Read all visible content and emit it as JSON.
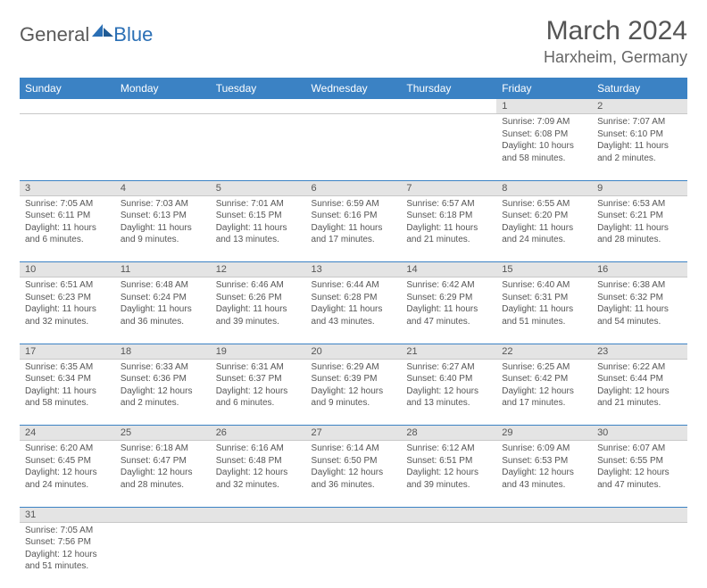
{
  "brand": {
    "part1": "General",
    "part2": "Blue"
  },
  "title": "March 2024",
  "location": "Harxheim, Germany",
  "colors": {
    "header_bg": "#3b82c4",
    "header_text": "#ffffff",
    "daynum_bg": "#e4e4e4",
    "text": "#555555",
    "rule": "#3b82c4"
  },
  "day_headers": [
    "Sunday",
    "Monday",
    "Tuesday",
    "Wednesday",
    "Thursday",
    "Friday",
    "Saturday"
  ],
  "weeks": [
    [
      null,
      null,
      null,
      null,
      null,
      {
        "n": "1",
        "sr": "Sunrise: 7:09 AM",
        "ss": "Sunset: 6:08 PM",
        "dl1": "Daylight: 10 hours",
        "dl2": "and 58 minutes."
      },
      {
        "n": "2",
        "sr": "Sunrise: 7:07 AM",
        "ss": "Sunset: 6:10 PM",
        "dl1": "Daylight: 11 hours",
        "dl2": "and 2 minutes."
      }
    ],
    [
      {
        "n": "3",
        "sr": "Sunrise: 7:05 AM",
        "ss": "Sunset: 6:11 PM",
        "dl1": "Daylight: 11 hours",
        "dl2": "and 6 minutes."
      },
      {
        "n": "4",
        "sr": "Sunrise: 7:03 AM",
        "ss": "Sunset: 6:13 PM",
        "dl1": "Daylight: 11 hours",
        "dl2": "and 9 minutes."
      },
      {
        "n": "5",
        "sr": "Sunrise: 7:01 AM",
        "ss": "Sunset: 6:15 PM",
        "dl1": "Daylight: 11 hours",
        "dl2": "and 13 minutes."
      },
      {
        "n": "6",
        "sr": "Sunrise: 6:59 AM",
        "ss": "Sunset: 6:16 PM",
        "dl1": "Daylight: 11 hours",
        "dl2": "and 17 minutes."
      },
      {
        "n": "7",
        "sr": "Sunrise: 6:57 AM",
        "ss": "Sunset: 6:18 PM",
        "dl1": "Daylight: 11 hours",
        "dl2": "and 21 minutes."
      },
      {
        "n": "8",
        "sr": "Sunrise: 6:55 AM",
        "ss": "Sunset: 6:20 PM",
        "dl1": "Daylight: 11 hours",
        "dl2": "and 24 minutes."
      },
      {
        "n": "9",
        "sr": "Sunrise: 6:53 AM",
        "ss": "Sunset: 6:21 PM",
        "dl1": "Daylight: 11 hours",
        "dl2": "and 28 minutes."
      }
    ],
    [
      {
        "n": "10",
        "sr": "Sunrise: 6:51 AM",
        "ss": "Sunset: 6:23 PM",
        "dl1": "Daylight: 11 hours",
        "dl2": "and 32 minutes."
      },
      {
        "n": "11",
        "sr": "Sunrise: 6:48 AM",
        "ss": "Sunset: 6:24 PM",
        "dl1": "Daylight: 11 hours",
        "dl2": "and 36 minutes."
      },
      {
        "n": "12",
        "sr": "Sunrise: 6:46 AM",
        "ss": "Sunset: 6:26 PM",
        "dl1": "Daylight: 11 hours",
        "dl2": "and 39 minutes."
      },
      {
        "n": "13",
        "sr": "Sunrise: 6:44 AM",
        "ss": "Sunset: 6:28 PM",
        "dl1": "Daylight: 11 hours",
        "dl2": "and 43 minutes."
      },
      {
        "n": "14",
        "sr": "Sunrise: 6:42 AM",
        "ss": "Sunset: 6:29 PM",
        "dl1": "Daylight: 11 hours",
        "dl2": "and 47 minutes."
      },
      {
        "n": "15",
        "sr": "Sunrise: 6:40 AM",
        "ss": "Sunset: 6:31 PM",
        "dl1": "Daylight: 11 hours",
        "dl2": "and 51 minutes."
      },
      {
        "n": "16",
        "sr": "Sunrise: 6:38 AM",
        "ss": "Sunset: 6:32 PM",
        "dl1": "Daylight: 11 hours",
        "dl2": "and 54 minutes."
      }
    ],
    [
      {
        "n": "17",
        "sr": "Sunrise: 6:35 AM",
        "ss": "Sunset: 6:34 PM",
        "dl1": "Daylight: 11 hours",
        "dl2": "and 58 minutes."
      },
      {
        "n": "18",
        "sr": "Sunrise: 6:33 AM",
        "ss": "Sunset: 6:36 PM",
        "dl1": "Daylight: 12 hours",
        "dl2": "and 2 minutes."
      },
      {
        "n": "19",
        "sr": "Sunrise: 6:31 AM",
        "ss": "Sunset: 6:37 PM",
        "dl1": "Daylight: 12 hours",
        "dl2": "and 6 minutes."
      },
      {
        "n": "20",
        "sr": "Sunrise: 6:29 AM",
        "ss": "Sunset: 6:39 PM",
        "dl1": "Daylight: 12 hours",
        "dl2": "and 9 minutes."
      },
      {
        "n": "21",
        "sr": "Sunrise: 6:27 AM",
        "ss": "Sunset: 6:40 PM",
        "dl1": "Daylight: 12 hours",
        "dl2": "and 13 minutes."
      },
      {
        "n": "22",
        "sr": "Sunrise: 6:25 AM",
        "ss": "Sunset: 6:42 PM",
        "dl1": "Daylight: 12 hours",
        "dl2": "and 17 minutes."
      },
      {
        "n": "23",
        "sr": "Sunrise: 6:22 AM",
        "ss": "Sunset: 6:44 PM",
        "dl1": "Daylight: 12 hours",
        "dl2": "and 21 minutes."
      }
    ],
    [
      {
        "n": "24",
        "sr": "Sunrise: 6:20 AM",
        "ss": "Sunset: 6:45 PM",
        "dl1": "Daylight: 12 hours",
        "dl2": "and 24 minutes."
      },
      {
        "n": "25",
        "sr": "Sunrise: 6:18 AM",
        "ss": "Sunset: 6:47 PM",
        "dl1": "Daylight: 12 hours",
        "dl2": "and 28 minutes."
      },
      {
        "n": "26",
        "sr": "Sunrise: 6:16 AM",
        "ss": "Sunset: 6:48 PM",
        "dl1": "Daylight: 12 hours",
        "dl2": "and 32 minutes."
      },
      {
        "n": "27",
        "sr": "Sunrise: 6:14 AM",
        "ss": "Sunset: 6:50 PM",
        "dl1": "Daylight: 12 hours",
        "dl2": "and 36 minutes."
      },
      {
        "n": "28",
        "sr": "Sunrise: 6:12 AM",
        "ss": "Sunset: 6:51 PM",
        "dl1": "Daylight: 12 hours",
        "dl2": "and 39 minutes."
      },
      {
        "n": "29",
        "sr": "Sunrise: 6:09 AM",
        "ss": "Sunset: 6:53 PM",
        "dl1": "Daylight: 12 hours",
        "dl2": "and 43 minutes."
      },
      {
        "n": "30",
        "sr": "Sunrise: 6:07 AM",
        "ss": "Sunset: 6:55 PM",
        "dl1": "Daylight: 12 hours",
        "dl2": "and 47 minutes."
      }
    ],
    [
      {
        "n": "31",
        "sr": "Sunrise: 7:05 AM",
        "ss": "Sunset: 7:56 PM",
        "dl1": "Daylight: 12 hours",
        "dl2": "and 51 minutes."
      },
      null,
      null,
      null,
      null,
      null,
      null
    ]
  ]
}
